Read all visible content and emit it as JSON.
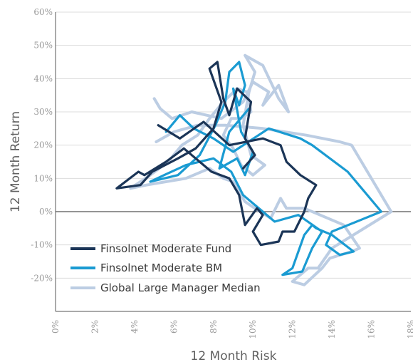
{
  "colors": {
    "fund": "#1b3557",
    "bm": "#1a9bd2",
    "median": "#bccde3",
    "grid": "#dcdcdc",
    "axis": "#555555"
  },
  "chart_data": {
    "type": "line",
    "title": "",
    "xlabel": "12 Month Risk",
    "ylabel": "12 Month Return",
    "xlim": [
      0,
      18
    ],
    "ylim": [
      -30,
      60
    ],
    "x_ticks": [
      "0%",
      "2%",
      "4%",
      "6%",
      "8%",
      "10%",
      "12%",
      "14%",
      "16%",
      "18%"
    ],
    "y_ticks": [
      "-20%",
      "-10%",
      "0%",
      "10%",
      "20%",
      "30%",
      "40%",
      "50%",
      "60%"
    ],
    "y_tick_values": [
      -20,
      -10,
      0,
      10,
      20,
      30,
      40,
      50,
      60
    ],
    "grid": "horizontal",
    "legend_position": "bottom-left",
    "series": [
      {
        "name": "Finsolnet Moderate Fund",
        "color": "#1b3557",
        "points": [
          [
            5.2,
            26
          ],
          [
            6.3,
            22
          ],
          [
            7.5,
            27
          ],
          [
            8.8,
            20
          ],
          [
            10.5,
            22
          ],
          [
            11.4,
            20
          ],
          [
            11.7,
            15
          ],
          [
            12.4,
            11
          ],
          [
            13.2,
            8
          ],
          [
            12.8,
            4
          ],
          [
            12.6,
            0
          ],
          [
            12.1,
            -6
          ],
          [
            11.5,
            -6
          ],
          [
            11.3,
            -9
          ],
          [
            10.4,
            -10
          ],
          [
            10.0,
            -6
          ],
          [
            10.5,
            -1
          ],
          [
            10.2,
            1
          ],
          [
            9.6,
            -4
          ],
          [
            9.3,
            5
          ],
          [
            8.8,
            10
          ],
          [
            7.9,
            12
          ],
          [
            6.9,
            17
          ],
          [
            6.5,
            19
          ],
          [
            5.6,
            15
          ],
          [
            4.5,
            11
          ],
          [
            4.2,
            12
          ],
          [
            3.1,
            7
          ],
          [
            4.3,
            8
          ],
          [
            4.9,
            12
          ],
          [
            6.2,
            16
          ],
          [
            7.1,
            19
          ],
          [
            8.0,
            25
          ],
          [
            8.4,
            33
          ],
          [
            7.8,
            43
          ],
          [
            8.2,
            45
          ],
          [
            8.5,
            34
          ],
          [
            8.8,
            29
          ],
          [
            9.2,
            37
          ],
          [
            9.9,
            33
          ],
          [
            9.6,
            22
          ],
          [
            10.1,
            17
          ],
          [
            9.5,
            13
          ]
        ]
      },
      {
        "name": "Finsolnet Moderate BM",
        "color": "#1a9bd2",
        "points": [
          [
            5.6,
            24
          ],
          [
            6.3,
            29
          ],
          [
            7.0,
            25
          ],
          [
            8.0,
            22
          ],
          [
            9.0,
            18
          ],
          [
            10.8,
            25
          ],
          [
            12.4,
            22
          ],
          [
            13.0,
            20
          ],
          [
            14.8,
            12
          ],
          [
            16.5,
            0
          ],
          [
            14.0,
            -6
          ],
          [
            13.7,
            -10
          ],
          [
            14.4,
            -13
          ],
          [
            15.1,
            -12
          ],
          [
            14.0,
            -7
          ],
          [
            13.2,
            -5
          ],
          [
            13.0,
            -4
          ],
          [
            12.6,
            -7
          ],
          [
            12.0,
            -17
          ],
          [
            11.5,
            -19
          ],
          [
            12.5,
            -18
          ],
          [
            13.0,
            -11
          ],
          [
            13.5,
            -6
          ],
          [
            12.3,
            -1
          ],
          [
            11.1,
            -3
          ],
          [
            10.5,
            0
          ],
          [
            9.5,
            5
          ],
          [
            8.9,
            12
          ],
          [
            8.0,
            16
          ],
          [
            6.6,
            14
          ],
          [
            5.5,
            11
          ],
          [
            4.8,
            9
          ],
          [
            6.2,
            11
          ],
          [
            7.3,
            17
          ],
          [
            8.1,
            26
          ],
          [
            8.6,
            33
          ],
          [
            8.8,
            42
          ],
          [
            9.3,
            45
          ],
          [
            9.6,
            38
          ],
          [
            9.3,
            32
          ],
          [
            9.0,
            37
          ],
          [
            9.4,
            24
          ],
          [
            10.0,
            18
          ],
          [
            9.6,
            11
          ],
          [
            9.2,
            16
          ],
          [
            8.3,
            13
          ],
          [
            8.8,
            24
          ],
          [
            9.8,
            31
          ]
        ]
      },
      {
        "name": "Global Large Manager Median",
        "color": "#bccde3",
        "points": [
          [
            5.1,
            21
          ],
          [
            6.0,
            24
          ],
          [
            7.2,
            26
          ],
          [
            8.6,
            26
          ],
          [
            10.5,
            25
          ],
          [
            12.7,
            23
          ],
          [
            14.4,
            21
          ],
          [
            15.0,
            20
          ],
          [
            17.0,
            0
          ],
          [
            14.0,
            -11
          ],
          [
            13.3,
            -17
          ],
          [
            12.8,
            -17
          ],
          [
            12.0,
            -21
          ],
          [
            12.6,
            -22
          ],
          [
            13.5,
            -17
          ],
          [
            13.9,
            -14
          ],
          [
            15.0,
            -12
          ],
          [
            15.4,
            -11
          ],
          [
            14.6,
            -4
          ],
          [
            13.4,
            -1
          ],
          [
            12.6,
            1
          ],
          [
            11.7,
            1
          ],
          [
            11.4,
            4
          ],
          [
            10.9,
            -2
          ],
          [
            10.1,
            1
          ],
          [
            9.6,
            3
          ],
          [
            9.0,
            9
          ],
          [
            8.5,
            10
          ],
          [
            7.8,
            13
          ],
          [
            6.6,
            10
          ],
          [
            4.6,
            8
          ],
          [
            3.8,
            7
          ],
          [
            4.8,
            11
          ],
          [
            5.7,
            15
          ],
          [
            6.4,
            20
          ],
          [
            7.2,
            23
          ],
          [
            7.8,
            28
          ],
          [
            8.5,
            33
          ],
          [
            9.2,
            37
          ],
          [
            9.7,
            36
          ],
          [
            9.9,
            30
          ],
          [
            9.4,
            28
          ],
          [
            8.9,
            28
          ],
          [
            8.5,
            23
          ],
          [
            9.0,
            19
          ],
          [
            9.4,
            14
          ],
          [
            10.0,
            11
          ],
          [
            10.6,
            14
          ],
          [
            9.9,
            17
          ],
          [
            9.5,
            26
          ],
          [
            9.8,
            36
          ],
          [
            10.1,
            42
          ],
          [
            9.6,
            47
          ],
          [
            10.5,
            44
          ],
          [
            11.3,
            34
          ],
          [
            11.8,
            30
          ],
          [
            11.3,
            38
          ],
          [
            10.5,
            32
          ],
          [
            10.8,
            36
          ],
          [
            10.0,
            39
          ],
          [
            9.5,
            33
          ],
          [
            8.4,
            28
          ],
          [
            6.9,
            30
          ],
          [
            5.9,
            28
          ],
          [
            5.3,
            31
          ],
          [
            5.0,
            34
          ]
        ]
      }
    ]
  }
}
